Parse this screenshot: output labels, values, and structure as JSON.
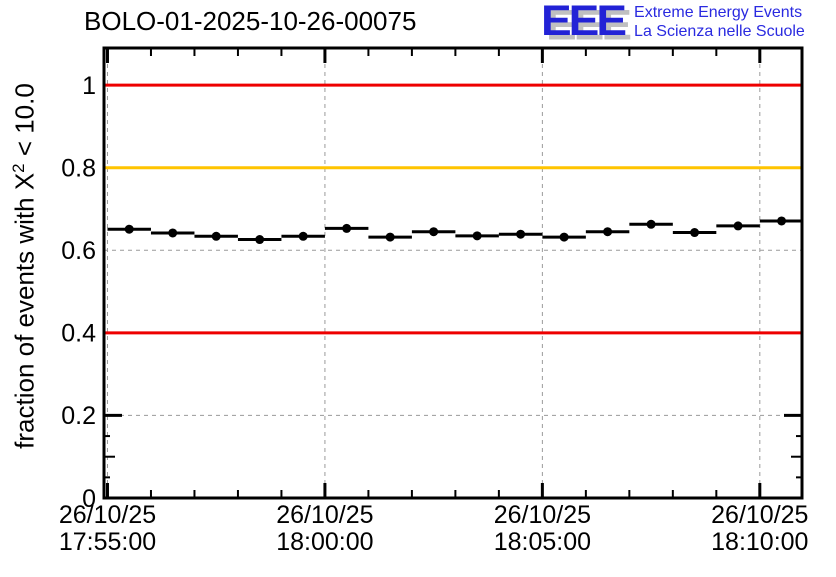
{
  "header": {
    "title": "BOLO-01-2025-10-26-00075"
  },
  "logo": {
    "acronym": "EEE",
    "line1": "Extreme Energy Events",
    "line2": "La Scienza nelle Scuole",
    "color": "#2222d6"
  },
  "chart_data": {
    "type": "scatter",
    "title": "BOLO-01-2025-10-26-00075",
    "ylabel": "fraction of events with X² < 10.0",
    "ylabel_prefix": "fraction of events with X",
    "ylabel_sup": "2",
    "ylabel_suffix": " < 10.0",
    "ylim": [
      0,
      1.09
    ],
    "yticks_major": [
      0,
      0.2,
      0.4,
      0.6,
      0.8,
      1
    ],
    "ytick_labels": [
      "0",
      "0.2",
      "0.4",
      "0.6",
      "0.8",
      "1"
    ],
    "ytick_medium_step": 0.1,
    "ytick_minor_step": 0.05,
    "xlim_minutes_from_first_tick": [
      -0.08,
      15.97
    ],
    "x_time_origin": "17:55:00",
    "xticks": [
      {
        "date": "26/10/25",
        "time": "17:55:00"
      },
      {
        "date": "26/10/25",
        "time": "18:00:00"
      },
      {
        "date": "26/10/25",
        "time": "18:05:00"
      },
      {
        "date": "26/10/25",
        "time": "18:10:00"
      }
    ],
    "xtick_minor_step_minutes": 1,
    "grid": {
      "color": "#9a9a9a",
      "dash": "4 4",
      "shown": true
    },
    "reference_lines": [
      {
        "value": 1.0,
        "color": "#ee0000"
      },
      {
        "value": 0.8,
        "color": "#ffc400"
      },
      {
        "value": 0.4,
        "color": "#ee0000"
      }
    ],
    "series": [
      {
        "marker": "filled-circle",
        "marker_color": "#000000",
        "xerr_seconds": 30,
        "points": [
          {
            "time": "17:55:30",
            "value": 0.651
          },
          {
            "time": "17:56:30",
            "value": 0.642
          },
          {
            "time": "17:57:30",
            "value": 0.634
          },
          {
            "time": "17:58:30",
            "value": 0.626
          },
          {
            "time": "17:59:30",
            "value": 0.634
          },
          {
            "time": "18:00:30",
            "value": 0.653
          },
          {
            "time": "18:01:30",
            "value": 0.632
          },
          {
            "time": "18:02:30",
            "value": 0.645
          },
          {
            "time": "18:03:30",
            "value": 0.635
          },
          {
            "time": "18:04:30",
            "value": 0.639
          },
          {
            "time": "18:05:30",
            "value": 0.632
          },
          {
            "time": "18:06:30",
            "value": 0.645
          },
          {
            "time": "18:07:30",
            "value": 0.663
          },
          {
            "time": "18:08:30",
            "value": 0.643
          },
          {
            "time": "18:09:30",
            "value": 0.659
          },
          {
            "time": "18:10:30",
            "value": 0.671
          }
        ]
      }
    ]
  }
}
